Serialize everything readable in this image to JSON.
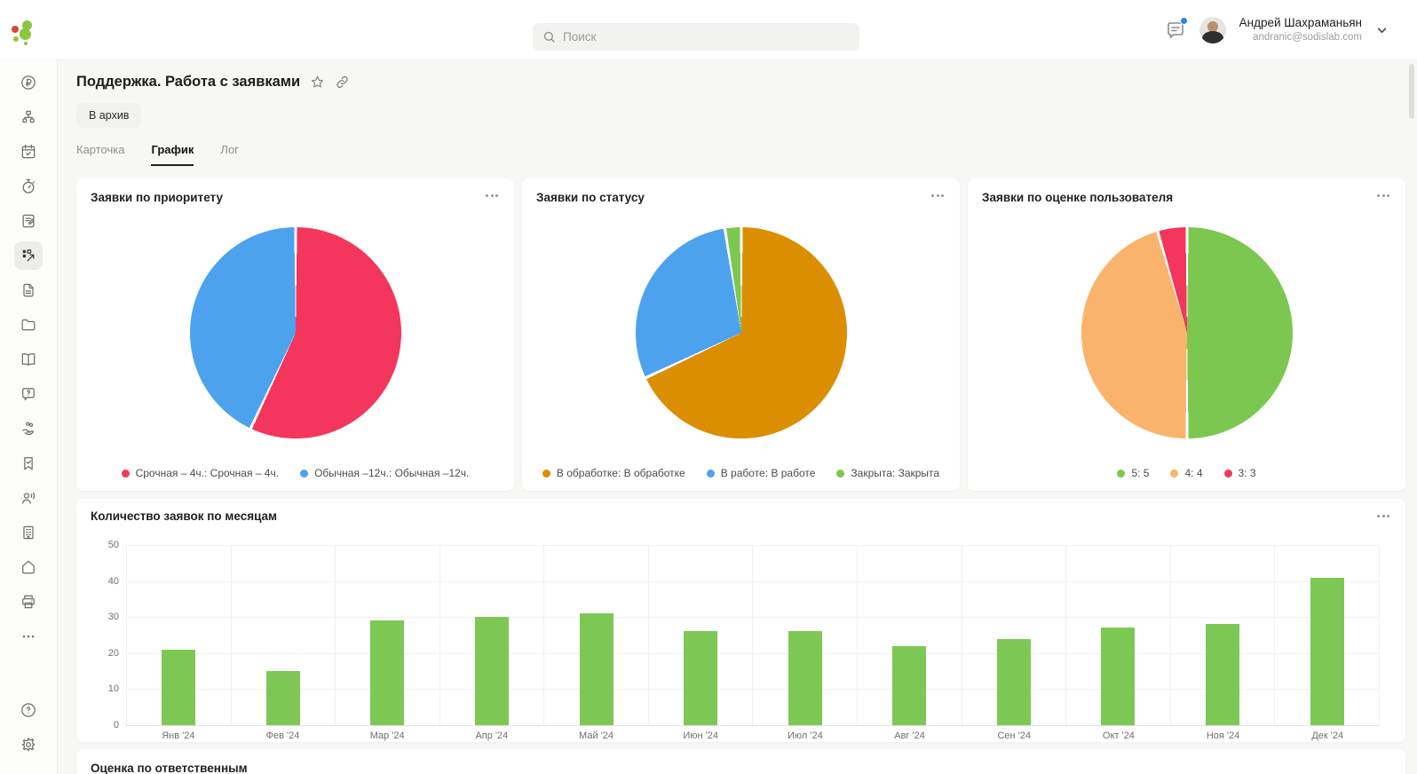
{
  "topbar": {
    "search_placeholder": "Поиск",
    "user_name": "Андрей Шахраманьян",
    "user_email": "andranic@sodislab.com"
  },
  "page": {
    "title": "Поддержка. Работа с заявками",
    "archive_button": "В архив",
    "tabs": [
      {
        "label": "Карточка"
      },
      {
        "label": "График"
      },
      {
        "label": "Лог"
      }
    ],
    "bottom_section_title": "Оценка по ответственным"
  },
  "sidebar": {
    "items": [
      {
        "icon": "ruble-circle"
      },
      {
        "icon": "sitemap"
      },
      {
        "icon": "calendar-check"
      },
      {
        "icon": "stopwatch"
      },
      {
        "icon": "clipboard-note"
      },
      {
        "icon": "dashboard",
        "active": true
      },
      {
        "icon": "document"
      },
      {
        "icon": "folder"
      },
      {
        "icon": "book"
      },
      {
        "icon": "help-bubble"
      },
      {
        "icon": "hand-coins"
      },
      {
        "icon": "bookmark-check"
      },
      {
        "icon": "users"
      },
      {
        "icon": "building"
      },
      {
        "icon": "home"
      },
      {
        "icon": "printer"
      },
      {
        "icon": "more-ellipsis"
      },
      {
        "icon": "help-circle"
      },
      {
        "icon": "settings-gear"
      }
    ]
  },
  "chart_data": [
    {
      "type": "pie",
      "title": "Заявки по приоритету",
      "legend_position": "bottom",
      "slices": [
        {
          "label": "Срочная – 4ч.: Срочная – 4ч.",
          "color": "#F4365C",
          "pct": 57
        },
        {
          "label": "Обычная –12ч.: Обычная –12ч.",
          "color": "#4DA2EE",
          "pct": 43
        }
      ]
    },
    {
      "type": "pie",
      "title": "Заявки по статусу",
      "legend_position": "bottom",
      "slices": [
        {
          "label": "В обработке: В обработке",
          "color": "#DB8E00",
          "pct": 68
        },
        {
          "label": "В работе: В работе",
          "color": "#4DA2EE",
          "pct": 29.5
        },
        {
          "label": "Закрыта: Закрыта",
          "color": "#7CC750",
          "pct": 2.5
        }
      ]
    },
    {
      "type": "pie",
      "title": "Заявки по оценке пользователя",
      "legend_position": "bottom",
      "slices": [
        {
          "label": "5: 5",
          "color": "#7CC750",
          "pct": 50
        },
        {
          "label": "4: 4",
          "color": "#FAB36C",
          "pct": 45.5
        },
        {
          "label": "3: 3",
          "color": "#F4365C",
          "pct": 4.5
        }
      ]
    },
    {
      "type": "bar",
      "title": "Количество заявок по месяцам",
      "categories": [
        "Янв '24",
        "Фев '24",
        "Мар '24",
        "Апр '24",
        "Май '24",
        "Июн '24",
        "Июл '24",
        "Авг '24",
        "Сен '24",
        "Окт '24",
        "Ноя '24",
        "Дек '24"
      ],
      "values": [
        21,
        15,
        29,
        30,
        31,
        26,
        26,
        22,
        24,
        27,
        28,
        41
      ],
      "bar_color": "#7DC855",
      "ylim": [
        0,
        50
      ],
      "yticks": [
        0,
        10,
        20,
        30,
        40,
        50
      ],
      "grid": true,
      "xlabel": "",
      "ylabel": ""
    }
  ]
}
